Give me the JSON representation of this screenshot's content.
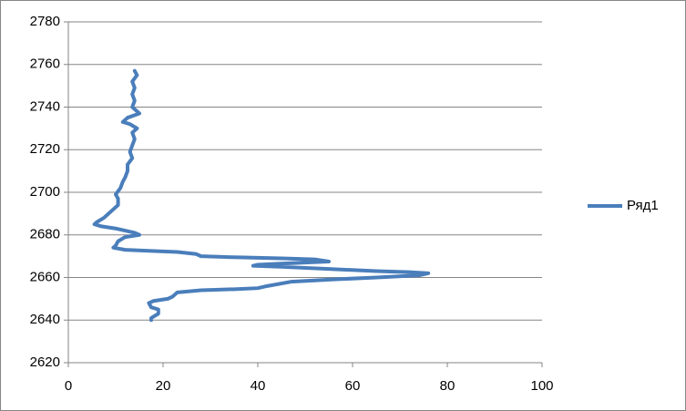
{
  "chart_data": {
    "type": "scatter-line",
    "series": [
      {
        "name": "Ряд1",
        "color": "#4a7ebb",
        "x": [
          14,
          14.5,
          13.5,
          14,
          13.5,
          14,
          13.5,
          15,
          12.5,
          11.5,
          13,
          14.5,
          13.5,
          14,
          13.5,
          13,
          13.5,
          12.5,
          12.5,
          12,
          11.5,
          11,
          10,
          10.5,
          10.5,
          9.5,
          8.5,
          7.5,
          6,
          5.5,
          7,
          10,
          12,
          14,
          15,
          12,
          10.5,
          10,
          9.5,
          12,
          17,
          23,
          27,
          28,
          35,
          45,
          52,
          55,
          50,
          45,
          40,
          39,
          45,
          55,
          65,
          72,
          76,
          74,
          65,
          55,
          47,
          42,
          40,
          35,
          28,
          23,
          22.5,
          22,
          21,
          18,
          17,
          17.5,
          19,
          19,
          17.5,
          17.5
        ],
        "values": [
          2757,
          2755,
          2752,
          2749,
          2746,
          2743,
          2740,
          2737,
          2735,
          2733,
          2732,
          2730,
          2728,
          2725,
          2722,
          2719,
          2716,
          2713,
          2710,
          2707,
          2705,
          2702,
          2699,
          2697,
          2694,
          2692,
          2690,
          2688,
          2686,
          2685,
          2684,
          2683,
          2682,
          2681,
          2680,
          2679,
          2677,
          2675,
          2674,
          2673,
          2672.5,
          2672,
          2671,
          2670,
          2669.5,
          2669,
          2668.5,
          2667.5,
          2667,
          2666.5,
          2666,
          2665.5,
          2665,
          2664,
          2663,
          2662.5,
          2662,
          2661,
          2660,
          2659,
          2658,
          2656,
          2655,
          2654.5,
          2654,
          2653,
          2652,
          2651,
          2650,
          2649,
          2648,
          2646,
          2645,
          2643,
          2641,
          2640
        ]
      }
    ],
    "xlim": [
      0,
      100
    ],
    "xticks": [
      0,
      20,
      40,
      60,
      80,
      100
    ],
    "ylim": [
      2620,
      2780
    ],
    "yticks": [
      2620,
      2640,
      2660,
      2680,
      2700,
      2720,
      2740,
      2760,
      2780
    ],
    "grid": true,
    "legend": "right"
  }
}
